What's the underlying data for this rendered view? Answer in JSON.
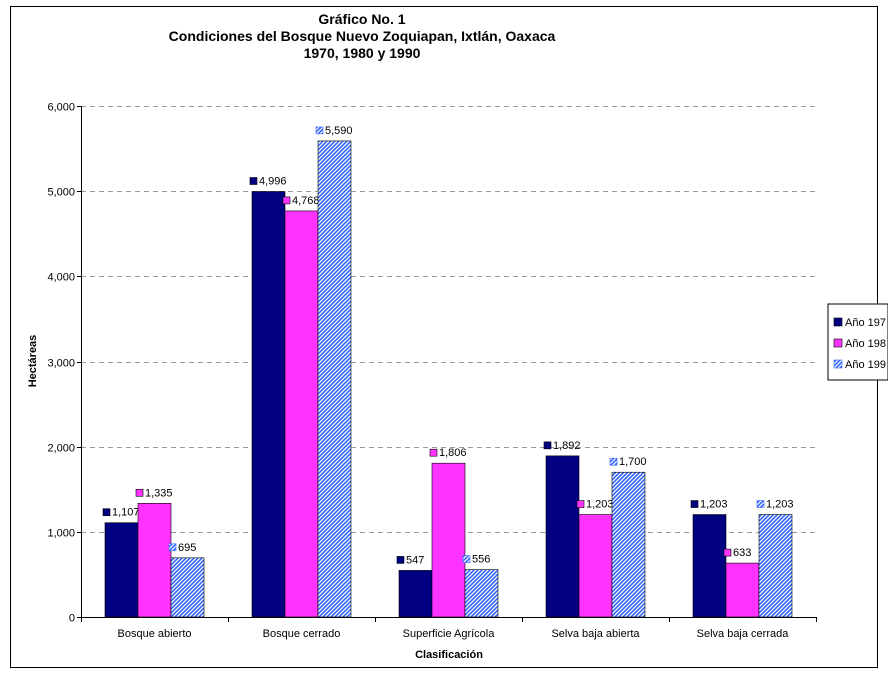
{
  "chart_data": {
    "type": "bar",
    "title": [
      "Gráfico No. 1",
      "Condiciones del Bosque Nuevo Zoquiapan, Ixtlán, Oaxaca",
      "1970, 1980 y 1990"
    ],
    "xlabel": "Clasificación",
    "ylabel": "Hectáreas",
    "ylim": [
      0,
      6000
    ],
    "yticks": [
      0,
      1000,
      2000,
      3000,
      4000,
      5000,
      6000
    ],
    "ytick_labels": [
      "0",
      "1,000",
      "2,000",
      "3,000",
      "4,000",
      "5,000",
      "6,000"
    ],
    "grid": true,
    "legend_position": "right",
    "categories": [
      "Bosque abierto",
      "Bosque cerrado",
      "Superficie Agrícola",
      "Selva baja abierta",
      "Selva baja cerrada"
    ],
    "series": [
      {
        "name": "Año 197",
        "color": "#000080",
        "pattern": "solid",
        "values": [
          1107,
          4996,
          547,
          1892,
          1203
        ],
        "labels": [
          "1,107",
          "4,996",
          "547",
          "1,892",
          "1,203"
        ]
      },
      {
        "name": "Año 198",
        "color": "#ff33ff",
        "pattern": "solid",
        "values": [
          1335,
          4768,
          1806,
          1203,
          633
        ],
        "labels": [
          "1,335",
          "4,768",
          "1,806",
          "1,203",
          "633"
        ]
      },
      {
        "name": "Año 199",
        "color": "#3366ff",
        "pattern": "hatch",
        "values": [
          695,
          5590,
          556,
          1700,
          1203
        ],
        "labels": [
          "695",
          "5,590",
          "556",
          "1,700",
          "1,203"
        ]
      }
    ]
  }
}
